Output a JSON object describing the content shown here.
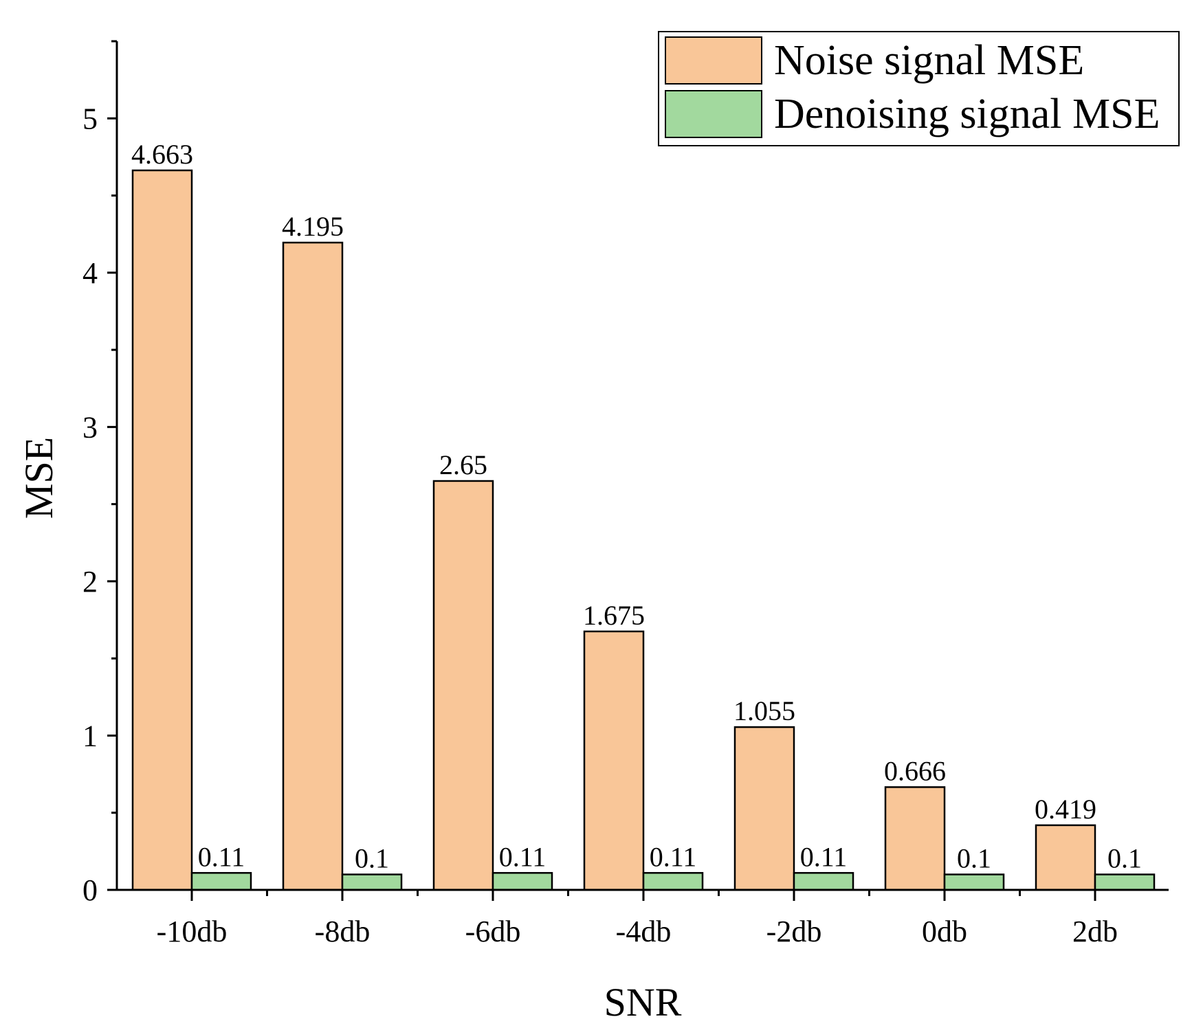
{
  "chart_data": {
    "type": "bar",
    "title": "",
    "xlabel": "SNR",
    "ylabel": "MSE",
    "categories": [
      "-10db",
      "-8db",
      "-6db",
      "-4db",
      "-2db",
      "0db",
      "2db"
    ],
    "series": [
      {
        "name": "Noise signal MSE",
        "color": "#F9C698",
        "values": [
          4.663,
          4.195,
          2.65,
          1.675,
          1.055,
          0.666,
          0.419
        ],
        "labels": [
          "4.663",
          "4.195",
          "2.65",
          "1.675",
          "1.055",
          "0.666",
          "0.419"
        ]
      },
      {
        "name": "Denoising signal MSE",
        "color": "#A2D99E",
        "values": [
          0.11,
          0.1,
          0.11,
          0.11,
          0.11,
          0.1,
          0.1
        ],
        "labels": [
          "0.11",
          "0.1",
          "0.11",
          "0.11",
          "0.11",
          "0.1",
          "0.1"
        ]
      }
    ],
    "ylim": [
      0,
      5.5
    ],
    "yticks": [
      0,
      1,
      2,
      3,
      4,
      5
    ],
    "yminor_step": 0.5,
    "grid": false,
    "legend_position": "top-right"
  }
}
